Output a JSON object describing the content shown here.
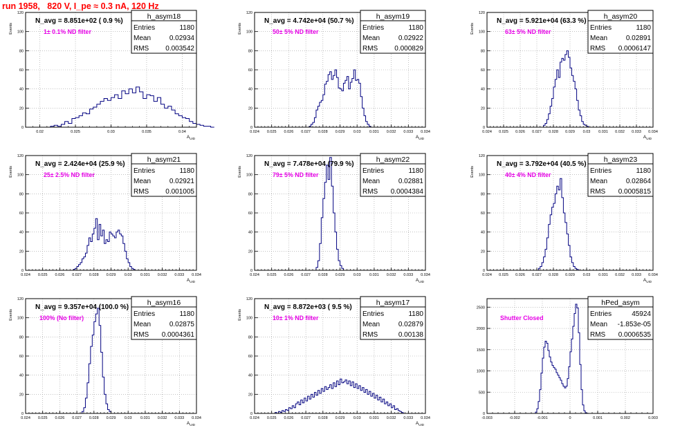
{
  "page": {
    "title": "run 1958,   820 V, I_pe ≈ 0.3 nA, 120 Hz"
  },
  "chart_data": [
    {
      "type": "bar",
      "name": "h_asym18",
      "ylabel": "Events",
      "xlabel": "A_UID",
      "xlim": [
        0.018,
        0.042
      ],
      "ylim": [
        0,
        120
      ],
      "xticks": [
        0.02,
        0.025,
        0.03,
        0.035,
        0.04
      ],
      "xtick_labels": [
        "0.02",
        "0.025",
        "0.03",
        "0.035",
        "0.04"
      ],
      "yticks": [
        0,
        20,
        40,
        60,
        80,
        100,
        120
      ],
      "stats": {
        "title": "h_asym18",
        "entries": "1180",
        "mean": "0.02934",
        "rms": "0.003542"
      },
      "header": "N_avg = 8.851e+02 ( 0.9 %)",
      "filter": "1± 0.1% ND filter",
      "binning": {
        "start": 0.0205,
        "width": 0.0005
      },
      "values": [
        0,
        0,
        1,
        2,
        1,
        3,
        6,
        4,
        9,
        10,
        12,
        15,
        14,
        19,
        21,
        24,
        27,
        30,
        28,
        31,
        34,
        30,
        38,
        35,
        40,
        36,
        42,
        37,
        30,
        34,
        33,
        27,
        31,
        24,
        20,
        22,
        18,
        14,
        12,
        10,
        9,
        6,
        4,
        3,
        2,
        1,
        1,
        0
      ]
    },
    {
      "type": "bar",
      "name": "h_asym19",
      "ylabel": "Events",
      "xlabel": "A_UID",
      "xlim": [
        0.024,
        0.034
      ],
      "ylim": [
        0,
        120
      ],
      "xticks": [
        0.024,
        0.025,
        0.026,
        0.027,
        0.028,
        0.029,
        0.03,
        0.031,
        0.032,
        0.033,
        0.034
      ],
      "xtick_labels": [
        "0.024",
        "0.025",
        "0.026",
        "0.027",
        "0.028",
        "0.029",
        "0.03",
        "0.031",
        "0.032",
        "0.033",
        "0.034"
      ],
      "yticks": [
        0,
        20,
        40,
        60,
        80,
        100,
        120
      ],
      "stats": {
        "title": "h_asym19",
        "entries": "1180",
        "mean": "0.02922",
        "rms": "0.000829"
      },
      "header": "N_avg = 4.742e+04 (50.7 %)",
      "filter": "50± 5% ND filter",
      "binning": {
        "start": 0.0272,
        "width": 0.0001
      },
      "values": [
        1,
        3,
        5,
        10,
        18,
        22,
        26,
        28,
        34,
        45,
        48,
        55,
        58,
        50,
        54,
        60,
        52,
        41,
        40,
        38,
        46,
        49,
        53,
        40,
        47,
        51,
        60,
        49,
        50,
        46,
        32,
        20,
        12,
        6,
        3,
        1
      ]
    },
    {
      "type": "bar",
      "name": "h_asym20",
      "ylabel": "Events",
      "xlabel": "A_UID",
      "xlim": [
        0.024,
        0.034
      ],
      "ylim": [
        0,
        120
      ],
      "xticks": [
        0.024,
        0.025,
        0.026,
        0.027,
        0.028,
        0.029,
        0.03,
        0.031,
        0.032,
        0.033,
        0.034
      ],
      "xtick_labels": [
        "0.024",
        "0.025",
        "0.026",
        "0.027",
        "0.028",
        "0.029",
        "0.03",
        "0.031",
        "0.032",
        "0.033",
        "0.034"
      ],
      "yticks": [
        0,
        20,
        40,
        60,
        80,
        100,
        120
      ],
      "stats": {
        "title": "h_asym20",
        "entries": "1180",
        "mean": "0.02891",
        "rms": "0.0006147"
      },
      "header": "N_avg = 5.921e+04 (63.3 %)",
      "filter": "63± 5% ND filter",
      "binning": {
        "start": 0.0274,
        "width": 0.0001
      },
      "values": [
        2,
        4,
        8,
        14,
        22,
        30,
        42,
        50,
        60,
        52,
        68,
        72,
        70,
        76,
        80,
        73,
        62,
        54,
        48,
        40,
        28,
        18,
        12,
        6,
        3,
        2,
        1
      ]
    },
    {
      "type": "bar",
      "name": "h_asym21",
      "ylabel": "Events",
      "xlabel": "A_UID",
      "xlim": [
        0.024,
        0.034
      ],
      "ylim": [
        0,
        120
      ],
      "xticks": [
        0.024,
        0.025,
        0.026,
        0.027,
        0.028,
        0.029,
        0.03,
        0.031,
        0.032,
        0.033,
        0.034
      ],
      "xtick_labels": [
        "0.024",
        "0.025",
        "0.026",
        "0.027",
        "0.028",
        "0.029",
        "0.03",
        "0.031",
        "0.032",
        "0.033",
        "0.034"
      ],
      "yticks": [
        0,
        20,
        40,
        60,
        80,
        100,
        120
      ],
      "stats": {
        "title": "h_asym21",
        "entries": "1180",
        "mean": "0.02921",
        "rms": "0.001005"
      },
      "header": "N_avg = 2.424e+04 (25.9 %)",
      "filter": "25± 2.5% ND filter",
      "binning": {
        "start": 0.0268,
        "width": 0.0001
      },
      "values": [
        1,
        2,
        4,
        6,
        8,
        12,
        14,
        18,
        26,
        34,
        30,
        38,
        44,
        54,
        32,
        48,
        36,
        42,
        28,
        32,
        30,
        40,
        38,
        36,
        34,
        40,
        42,
        38,
        36,
        28,
        20,
        12,
        8,
        4,
        2,
        1
      ]
    },
    {
      "type": "bar",
      "name": "h_asym22",
      "ylabel": "Events",
      "xlabel": "A_UID",
      "xlim": [
        0.024,
        0.034
      ],
      "ylim": [
        0,
        120
      ],
      "xticks": [
        0.024,
        0.025,
        0.026,
        0.027,
        0.028,
        0.029,
        0.03,
        0.031,
        0.032,
        0.033,
        0.034
      ],
      "xtick_labels": [
        "0.024",
        "0.025",
        "0.026",
        "0.027",
        "0.028",
        "0.029",
        "0.03",
        "0.031",
        "0.032",
        "0.033",
        "0.034"
      ],
      "yticks": [
        0,
        20,
        40,
        60,
        80,
        100,
        120
      ],
      "stats": {
        "title": "h_asym22",
        "entries": "1180",
        "mean": "0.02881",
        "rms": "0.0004384"
      },
      "header": "N_avg = 7.478e+04 (79.9 %)",
      "filter": "79± 5% ND filter",
      "binning": {
        "start": 0.0276,
        "width": 0.0001
      },
      "values": [
        3,
        10,
        28,
        55,
        75,
        92,
        110,
        95,
        118,
        88,
        60,
        40,
        22,
        10,
        5,
        2
      ]
    },
    {
      "type": "bar",
      "name": "h_asym23",
      "ylabel": "Events",
      "xlabel": "A_UID",
      "xlim": [
        0.024,
        0.034
      ],
      "ylim": [
        0,
        120
      ],
      "xticks": [
        0.024,
        0.025,
        0.026,
        0.027,
        0.028,
        0.029,
        0.03,
        0.031,
        0.032,
        0.033,
        0.034
      ],
      "xtick_labels": [
        "0.024",
        "0.025",
        "0.026",
        "0.027",
        "0.028",
        "0.029",
        "0.03",
        "0.031",
        "0.032",
        "0.033",
        "0.034"
      ],
      "yticks": [
        0,
        20,
        40,
        60,
        80,
        100,
        120
      ],
      "stats": {
        "title": "h_asym23",
        "entries": "1180",
        "mean": "0.02864",
        "rms": "0.0005815"
      },
      "header": "N_avg = 3.792e+04 (40.5 %)",
      "filter": "40± 4% ND filter",
      "binning": {
        "start": 0.0271,
        "width": 0.0001
      },
      "values": [
        2,
        4,
        8,
        14,
        22,
        34,
        48,
        58,
        66,
        70,
        80,
        88,
        84,
        96,
        76,
        60,
        50,
        38,
        26,
        14,
        8,
        4,
        2,
        1
      ]
    },
    {
      "type": "bar",
      "name": "h_asym16",
      "ylabel": "Events",
      "xlabel": "A_UID",
      "xlim": [
        0.024,
        0.034
      ],
      "ylim": [
        0,
        120
      ],
      "xticks": [
        0.024,
        0.025,
        0.026,
        0.027,
        0.028,
        0.029,
        0.03,
        0.031,
        0.032,
        0.033,
        0.034
      ],
      "xtick_labels": [
        "0.024",
        "0.025",
        "0.026",
        "0.027",
        "0.028",
        "0.029",
        "0.03",
        "0.031",
        "0.032",
        "0.033",
        "0.034"
      ],
      "yticks": [
        0,
        20,
        40,
        60,
        80,
        100,
        120
      ],
      "stats": {
        "title": "h_asym16",
        "entries": "1180",
        "mean": "0.02875",
        "rms": "0.0004361"
      },
      "header": "N_avg = 9.357e+04 (100.0 %)",
      "filter": "100% (No filter)",
      "binning": {
        "start": 0.0273,
        "width": 0.0001
      },
      "values": [
        2,
        6,
        16,
        32,
        52,
        70,
        82,
        96,
        104,
        110,
        92,
        64,
        38,
        20,
        10,
        4,
        2
      ]
    },
    {
      "type": "bar",
      "name": "h_asym17",
      "ylabel": "Events",
      "xlabel": "A_UID",
      "xlim": [
        0.024,
        0.034
      ],
      "ylim": [
        0,
        120
      ],
      "xticks": [
        0.024,
        0.025,
        0.026,
        0.027,
        0.028,
        0.029,
        0.03,
        0.031,
        0.032,
        0.033,
        0.034
      ],
      "xtick_labels": [
        "0.024",
        "0.025",
        "0.026",
        "0.027",
        "0.028",
        "0.029",
        "0.03",
        "0.031",
        "0.032",
        "0.033",
        "0.034"
      ],
      "yticks": [
        0,
        20,
        40,
        60,
        80,
        100,
        120
      ],
      "stats": {
        "title": "h_asym17",
        "entries": "1180",
        "mean": "0.02879",
        "rms": "0.00138"
      },
      "header": "N_avg = 8.872e+03 ( 9.5 %)",
      "filter": "10± 1% ND filter",
      "binning": {
        "start": 0.0252,
        "width": 0.0001
      },
      "values": [
        1,
        0,
        2,
        1,
        3,
        2,
        4,
        3,
        6,
        5,
        8,
        6,
        10,
        12,
        9,
        14,
        11,
        16,
        13,
        18,
        15,
        20,
        17,
        22,
        19,
        24,
        21,
        26,
        23,
        28,
        25,
        27,
        30,
        26,
        32,
        28,
        34,
        30,
        36,
        32,
        33,
        35,
        31,
        34,
        29,
        33,
        27,
        31,
        26,
        29,
        24,
        27,
        22,
        25,
        20,
        23,
        18,
        21,
        16,
        19,
        14,
        17,
        12,
        15,
        10,
        12,
        8,
        10,
        6,
        8,
        4,
        5,
        3,
        2,
        1
      ]
    },
    {
      "type": "bar",
      "name": "hPed_asym",
      "ylabel": "",
      "xlabel": "",
      "xlim": [
        -0.003,
        0.003
      ],
      "ylim": [
        0,
        2700
      ],
      "xticks": [
        -0.003,
        -0.002,
        -0.001,
        0,
        0.001,
        0.002,
        0.003
      ],
      "xtick_labels": [
        "-0.003",
        "-0.002",
        "-0.001",
        "0",
        "0.001",
        "0.002",
        "0.003"
      ],
      "yticks": [
        0,
        500,
        1000,
        1500,
        2000,
        2500
      ],
      "stats": {
        "title": "hPed_asym",
        "entries": "45924",
        "mean": "-1.853e-05",
        "rms": "0.0006535"
      },
      "header": "",
      "filter": "Shutter Closed",
      "binning": {
        "start": -0.00125,
        "width": 5e-05
      },
      "values": [
        30,
        110,
        280,
        560,
        950,
        1300,
        1560,
        1700,
        1650,
        1480,
        1330,
        1210,
        1130,
        1080,
        1040,
        960,
        900,
        840,
        780,
        700,
        640,
        600,
        640,
        820,
        1100,
        1450,
        1750,
        2050,
        2350,
        2570,
        2480,
        1900,
        1150,
        560,
        200,
        60,
        15,
        5
      ]
    }
  ]
}
